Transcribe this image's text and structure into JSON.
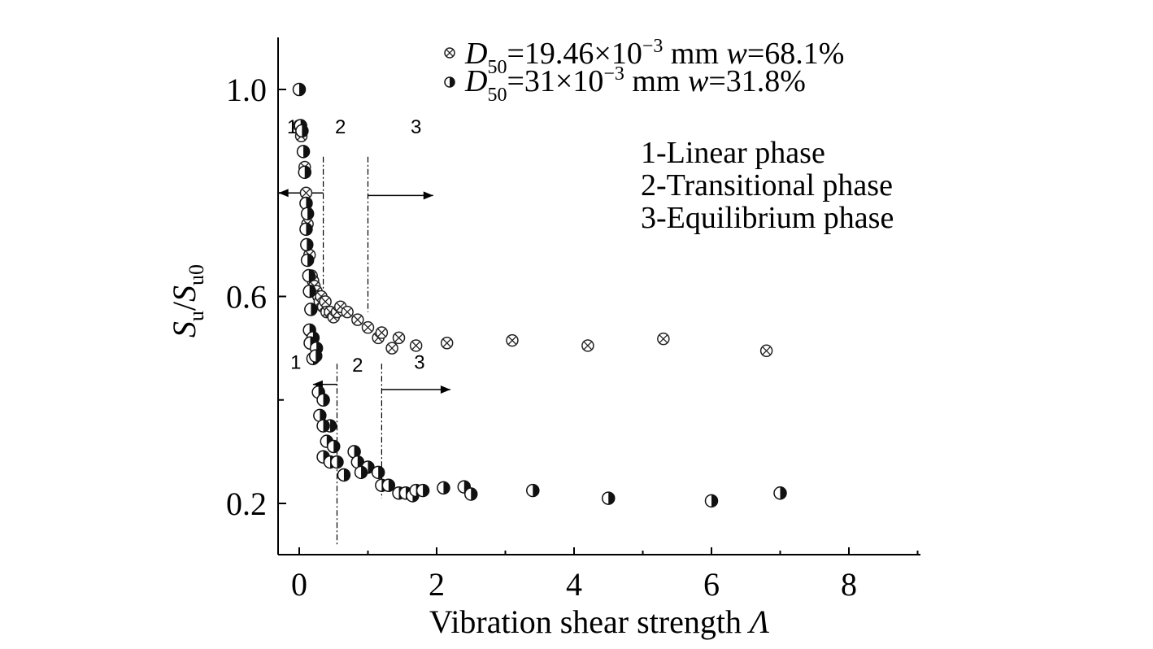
{
  "chart_data": {
    "type": "scatter",
    "xlabel": {
      "main": "Vibration shear strength ",
      "symbol": "Λ"
    },
    "ylabel": {
      "s1": "S",
      "sub1": "u",
      "slash": "/",
      "s2": "S",
      "sub2": "u0"
    },
    "xlim": [
      -0.3,
      9
    ],
    "ylim": [
      0.1,
      1.1
    ],
    "x_ticks": [
      0,
      2,
      4,
      6,
      8
    ],
    "y_ticks": [
      1.0,
      0.6,
      0.2
    ],
    "x_tick_labels": [
      "0",
      "2",
      "4",
      "6",
      "8"
    ],
    "y_tick_labels": [
      "1.0",
      "0.6",
      "0.2"
    ],
    "grid": false,
    "legend_position": "top-right",
    "series": [
      {
        "marker": "crossed-circle",
        "legend": {
          "d": "D",
          "sub": "50",
          "val": "=19.46×10",
          "exp": "−3",
          "mm": " mm ",
          "w": "w",
          "wval": "=68.1%"
        },
        "points": [
          [
            0.0,
            0.93
          ],
          [
            0.03,
            0.91
          ],
          [
            0.06,
            0.88
          ],
          [
            0.08,
            0.85
          ],
          [
            0.1,
            0.8
          ],
          [
            0.12,
            0.74
          ],
          [
            0.15,
            0.68
          ],
          [
            0.18,
            0.64
          ],
          [
            0.2,
            0.63
          ],
          [
            0.22,
            0.62
          ],
          [
            0.25,
            0.61
          ],
          [
            0.28,
            0.6
          ],
          [
            0.3,
            0.59
          ],
          [
            0.32,
            0.6
          ],
          [
            0.35,
            0.58
          ],
          [
            0.38,
            0.59
          ],
          [
            0.4,
            0.57
          ],
          [
            0.45,
            0.57
          ],
          [
            0.5,
            0.56
          ],
          [
            0.55,
            0.57
          ],
          [
            0.6,
            0.58
          ],
          [
            0.7,
            0.57
          ],
          [
            0.85,
            0.555
          ],
          [
            1.0,
            0.54
          ],
          [
            1.15,
            0.52
          ],
          [
            1.2,
            0.53
          ],
          [
            1.35,
            0.5
          ],
          [
            1.45,
            0.52
          ],
          [
            1.7,
            0.505
          ],
          [
            2.15,
            0.51
          ],
          [
            3.1,
            0.515
          ],
          [
            4.2,
            0.505
          ],
          [
            5.3,
            0.518
          ],
          [
            6.8,
            0.495
          ]
        ]
      },
      {
        "marker": "half-filled-circle",
        "legend": {
          "d": "D",
          "sub": "50",
          "val": "=31×10",
          "exp": "−3",
          "mm": " mm ",
          "w": "w",
          "wval": "=31.8%"
        },
        "points": [
          [
            0.0,
            1.0
          ],
          [
            0.02,
            0.93
          ],
          [
            0.04,
            0.92
          ],
          [
            0.06,
            0.88
          ],
          [
            0.08,
            0.84
          ],
          [
            0.1,
            0.78
          ],
          [
            0.12,
            0.76
          ],
          [
            0.1,
            0.73
          ],
          [
            0.11,
            0.7
          ],
          [
            0.12,
            0.67
          ],
          [
            0.14,
            0.64
          ],
          [
            0.15,
            0.61
          ],
          [
            0.17,
            0.575
          ],
          [
            0.15,
            0.535
          ],
          [
            0.2,
            0.52
          ],
          [
            0.16,
            0.51
          ],
          [
            0.25,
            0.5
          ],
          [
            0.2,
            0.48
          ],
          [
            0.24,
            0.485
          ],
          [
            0.28,
            0.415
          ],
          [
            0.35,
            0.4
          ],
          [
            0.3,
            0.37
          ],
          [
            0.45,
            0.35
          ],
          [
            0.35,
            0.35
          ],
          [
            0.4,
            0.32
          ],
          [
            0.5,
            0.31
          ],
          [
            0.35,
            0.29
          ],
          [
            0.45,
            0.28
          ],
          [
            0.55,
            0.28
          ],
          [
            0.65,
            0.255
          ],
          [
            0.8,
            0.3
          ],
          [
            0.85,
            0.28
          ],
          [
            1.0,
            0.27
          ],
          [
            0.9,
            0.26
          ],
          [
            1.15,
            0.26
          ],
          [
            1.2,
            0.235
          ],
          [
            1.3,
            0.235
          ],
          [
            1.45,
            0.22
          ],
          [
            1.55,
            0.22
          ],
          [
            1.65,
            0.215
          ],
          [
            1.7,
            0.225
          ],
          [
            1.8,
            0.225
          ],
          [
            2.1,
            0.23
          ],
          [
            2.4,
            0.232
          ],
          [
            2.5,
            0.218
          ],
          [
            3.4,
            0.225
          ],
          [
            4.5,
            0.21
          ],
          [
            6.0,
            0.205
          ],
          [
            7.0,
            0.22
          ]
        ]
      }
    ],
    "phase_annotations": {
      "upper": {
        "labels": [
          {
            "text": "1",
            "x": -0.1,
            "y": 0.915
          },
          {
            "text": "2",
            "x": 0.6,
            "y": 0.915
          },
          {
            "text": "3",
            "x": 1.7,
            "y": 0.915
          }
        ],
        "boundaries": [
          {
            "x": 0.35,
            "y0": 0.87,
            "y1": 0.58
          },
          {
            "x": 1.0,
            "y0": 0.87,
            "y1": 0.57
          }
        ],
        "arrows": [
          {
            "x0": 0.35,
            "x1": -0.3,
            "y": 0.8
          },
          {
            "x0": 1.0,
            "x1": 1.95,
            "y": 0.795
          }
        ]
      },
      "lower": {
        "labels": [
          {
            "text": "1",
            "x": -0.05,
            "y": 0.46
          },
          {
            "text": "2",
            "x": 0.85,
            "y": 0.455
          },
          {
            "text": "3",
            "x": 1.75,
            "y": 0.46
          }
        ],
        "boundaries": [
          {
            "x": 0.55,
            "y0": 0.47,
            "y1": 0.12
          },
          {
            "x": 1.2,
            "y0": 0.47,
            "y1": 0.21
          }
        ],
        "arrows": [
          {
            "x0": 0.55,
            "x1": 0.2,
            "y": 0.43
          },
          {
            "x0": 1.2,
            "x1": 2.2,
            "y": 0.42
          }
        ]
      }
    },
    "phase_legend": [
      "1-Linear phase",
      "2-Transitional phase",
      "3-Equilibrium phase"
    ]
  }
}
